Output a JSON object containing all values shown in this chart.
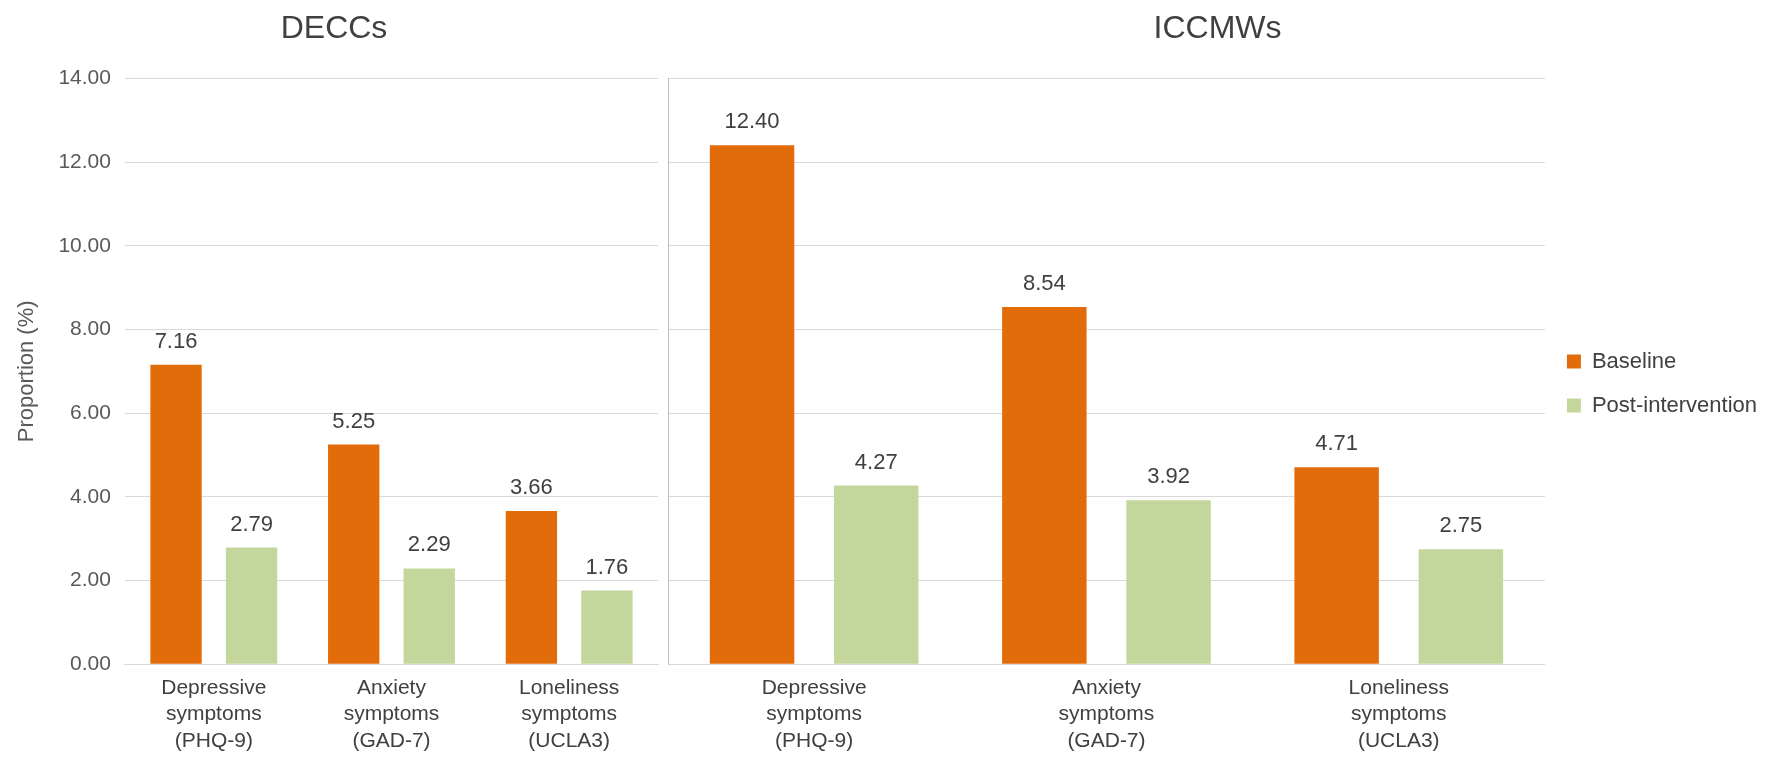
{
  "chart_data": [
    {
      "type": "bar",
      "title": "DECCs",
      "ylabel": "Proportion (%)",
      "categories": [
        "Depressive\nsymptoms\n(PHQ-9)",
        "Anxiety\nsymptoms\n(GAD-7)",
        "Loneliness\nsymptoms\n(UCLA3)"
      ],
      "series": [
        {
          "color": "#e36c0a",
          "values": [
            7.16,
            5.25,
            3.66
          ],
          "value_labels": [
            "7.16",
            "5.25",
            "3.66"
          ]
        },
        {
          "color": "#c3d69b",
          "values": [
            2.79,
            2.29,
            1.76
          ],
          "value_labels": [
            "2.79",
            "2.29",
            "1.76"
          ]
        }
      ],
      "ylim": [
        0,
        14
      ],
      "yticks": [
        {
          "value": 0,
          "label": "0.00"
        },
        {
          "value": 2,
          "label": "2.00"
        },
        {
          "value": 4,
          "label": "4.00"
        },
        {
          "value": 6,
          "label": "6.00"
        },
        {
          "value": 8,
          "label": "8.00"
        },
        {
          "value": 10,
          "label": "10.00"
        },
        {
          "value": 12,
          "label": "12.00"
        },
        {
          "value": 14,
          "label": "14.00"
        }
      ],
      "grid": "y",
      "legend": false
    },
    {
      "type": "bar",
      "title": "ICCMWs",
      "categories": [
        "Depressive\nsymptoms\n(PHQ-9)",
        "Anxiety\nsymptoms\n(GAD-7)",
        "Loneliness\nsymptoms\n(UCLA3)"
      ],
      "series": [
        {
          "name": "Baseline",
          "color": "#e36c0a",
          "values": [
            12.4,
            8.54,
            4.71
          ],
          "value_labels": [
            "12.40",
            "8.54",
            "4.71"
          ]
        },
        {
          "name": "Post-intervention",
          "color": "#c3d69b",
          "values": [
            4.27,
            3.92,
            2.75
          ],
          "value_labels": [
            "4.27",
            "3.92",
            "2.75"
          ]
        }
      ],
      "ylim": [
        0,
        14
      ],
      "yticks": [
        0,
        2,
        4,
        6,
        8,
        10,
        12,
        14
      ],
      "grid": "y",
      "legend": "right",
      "tick_labels": "x"
    }
  ]
}
